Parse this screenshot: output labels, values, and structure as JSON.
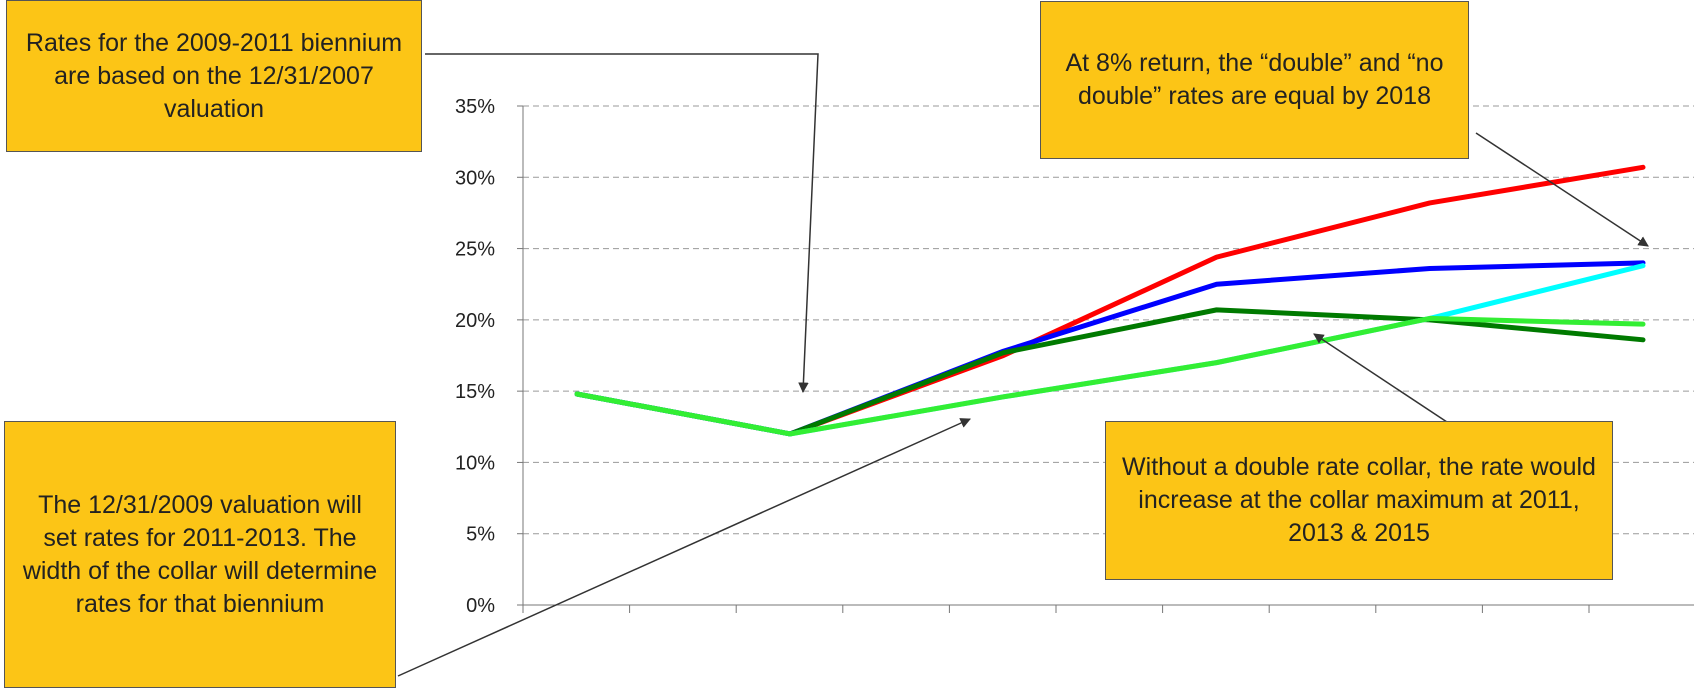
{
  "chart_data": {
    "type": "line",
    "title": "",
    "xlabel": "",
    "ylabel": "",
    "ylim": [
      0,
      0.35
    ],
    "y_ticks": [
      "0%",
      "5%",
      "10%",
      "15%",
      "20%",
      "25%",
      "30%",
      "35%"
    ],
    "x": [
      0,
      1,
      2,
      3,
      4,
      5,
      6,
      7,
      8,
      9,
      10
    ],
    "grid": "horizontal dashed",
    "series": [
      {
        "color": "#FF0000",
        "values": [
          0.148,
          null,
          0.12,
          null,
          0.175,
          null,
          0.244,
          null,
          0.282,
          null,
          0.307
        ]
      },
      {
        "color": "#0000FF",
        "values": [
          0.148,
          null,
          0.12,
          null,
          0.178,
          null,
          0.225,
          null,
          0.236,
          null,
          0.24
        ]
      },
      {
        "color": "#007A00",
        "values": [
          0.148,
          null,
          0.12,
          null,
          0.177,
          null,
          0.207,
          null,
          0.2,
          null,
          0.186
        ]
      },
      {
        "color": "#00FFFF",
        "values": [
          0.148,
          null,
          0.12,
          null,
          0.146,
          null,
          0.17,
          null,
          0.201,
          null,
          0.238
        ]
      },
      {
        "color": "#33EE33",
        "values": [
          0.148,
          null,
          0.12,
          null,
          0.146,
          null,
          0.17,
          null,
          0.201,
          null,
          0.197
        ]
      }
    ]
  },
  "annotations": {
    "top_left": "Rates for the 2009-2011 biennium are based on the 12/31/2007 valuation",
    "top_right": "At 8% return, the “double” and “no double” rates are equal by 2018",
    "bottom_left": "The 12/31/2009 valuation will set rates for 2011-2013. The width of the collar will determine rates for that biennium",
    "bottom_right": "Without a double rate collar, the rate would increase at the collar maximum at 2011, 2013 & 2015"
  }
}
